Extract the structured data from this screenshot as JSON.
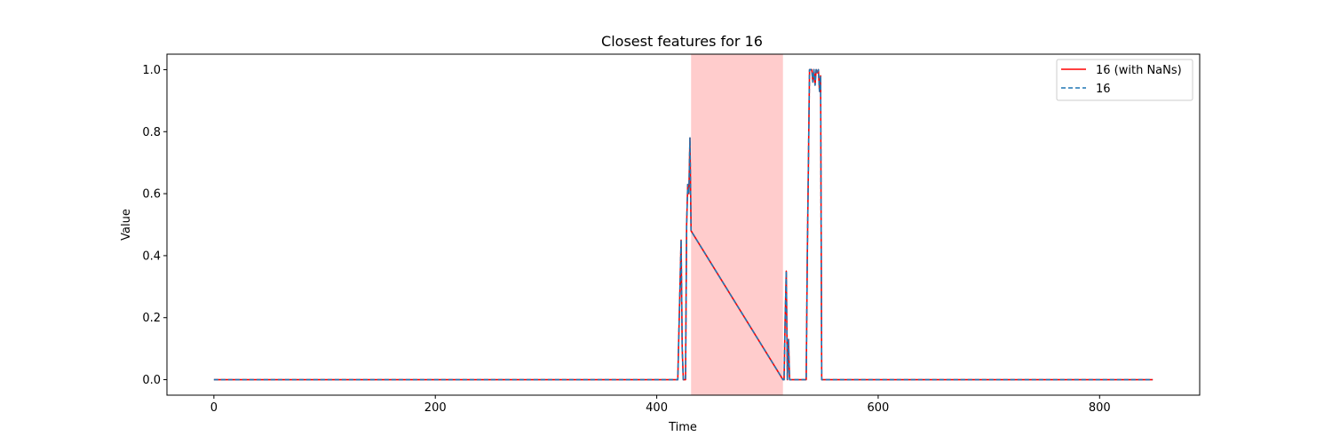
{
  "chart_data": {
    "type": "line",
    "title": "Closest features for 16",
    "xlabel": "Time",
    "ylabel": "Value",
    "xlim": [
      -42.4,
      890.4
    ],
    "ylim": [
      -0.05,
      1.05
    ],
    "xticks": [
      0,
      200,
      400,
      600,
      800
    ],
    "yticks": [
      0.0,
      0.2,
      0.4,
      0.6,
      0.8,
      1.0
    ],
    "xtick_labels": [
      "0",
      "200",
      "400",
      "600",
      "800"
    ],
    "ytick_labels": [
      "0.0",
      "0.2",
      "0.4",
      "0.6",
      "0.8",
      "1.0"
    ],
    "grid": false,
    "legend_position": "top-right",
    "highlight_span": {
      "x_start": 431,
      "x_end": 514,
      "color": "#ff9999",
      "alpha": 0.5
    },
    "series": [
      {
        "name": "16 (with NaNs)",
        "color": "#ff0000",
        "style": "solid",
        "x": [
          0,
          419,
          420,
          421,
          422,
          423,
          424,
          425,
          426,
          427,
          428,
          429,
          430,
          431,
          514,
          515,
          516,
          517,
          518,
          519,
          520,
          521,
          522,
          535,
          536,
          537,
          538,
          540,
          541,
          542,
          543,
          544,
          545,
          546,
          547,
          548,
          549,
          550,
          848
        ],
        "y": [
          0,
          0,
          0.15,
          0.3,
          0.45,
          0.1,
          0,
          0,
          0,
          0.5,
          0.63,
          0.6,
          0.78,
          0.48,
          0,
          0,
          0.2,
          0.35,
          0,
          0.13,
          0,
          0,
          0,
          0,
          0.4,
          0.7,
          1.0,
          1.0,
          0.96,
          1.0,
          0.95,
          1.0,
          0.99,
          1.0,
          0.93,
          0.98,
          0,
          0,
          0
        ]
      },
      {
        "name": "16",
        "color": "#1f77b4",
        "style": "dashed",
        "x": [
          0,
          419,
          420,
          421,
          422,
          423,
          424,
          425,
          426,
          427,
          428,
          429,
          430,
          431,
          514,
          515,
          516,
          517,
          518,
          519,
          520,
          521,
          522,
          535,
          536,
          537,
          538,
          540,
          541,
          542,
          543,
          544,
          545,
          546,
          547,
          548,
          549,
          550,
          848
        ],
        "y": [
          0,
          0,
          0.15,
          0.3,
          0.45,
          0.1,
          0,
          0,
          0,
          0.5,
          0.63,
          0.6,
          0.78,
          0.48,
          0,
          0,
          0.2,
          0.35,
          0,
          0.13,
          0,
          0,
          0,
          0,
          0.4,
          0.7,
          1.0,
          1.0,
          0.96,
          1.0,
          0.95,
          1.0,
          0.99,
          1.0,
          0.93,
          0.98,
          0,
          0,
          0
        ]
      }
    ]
  }
}
